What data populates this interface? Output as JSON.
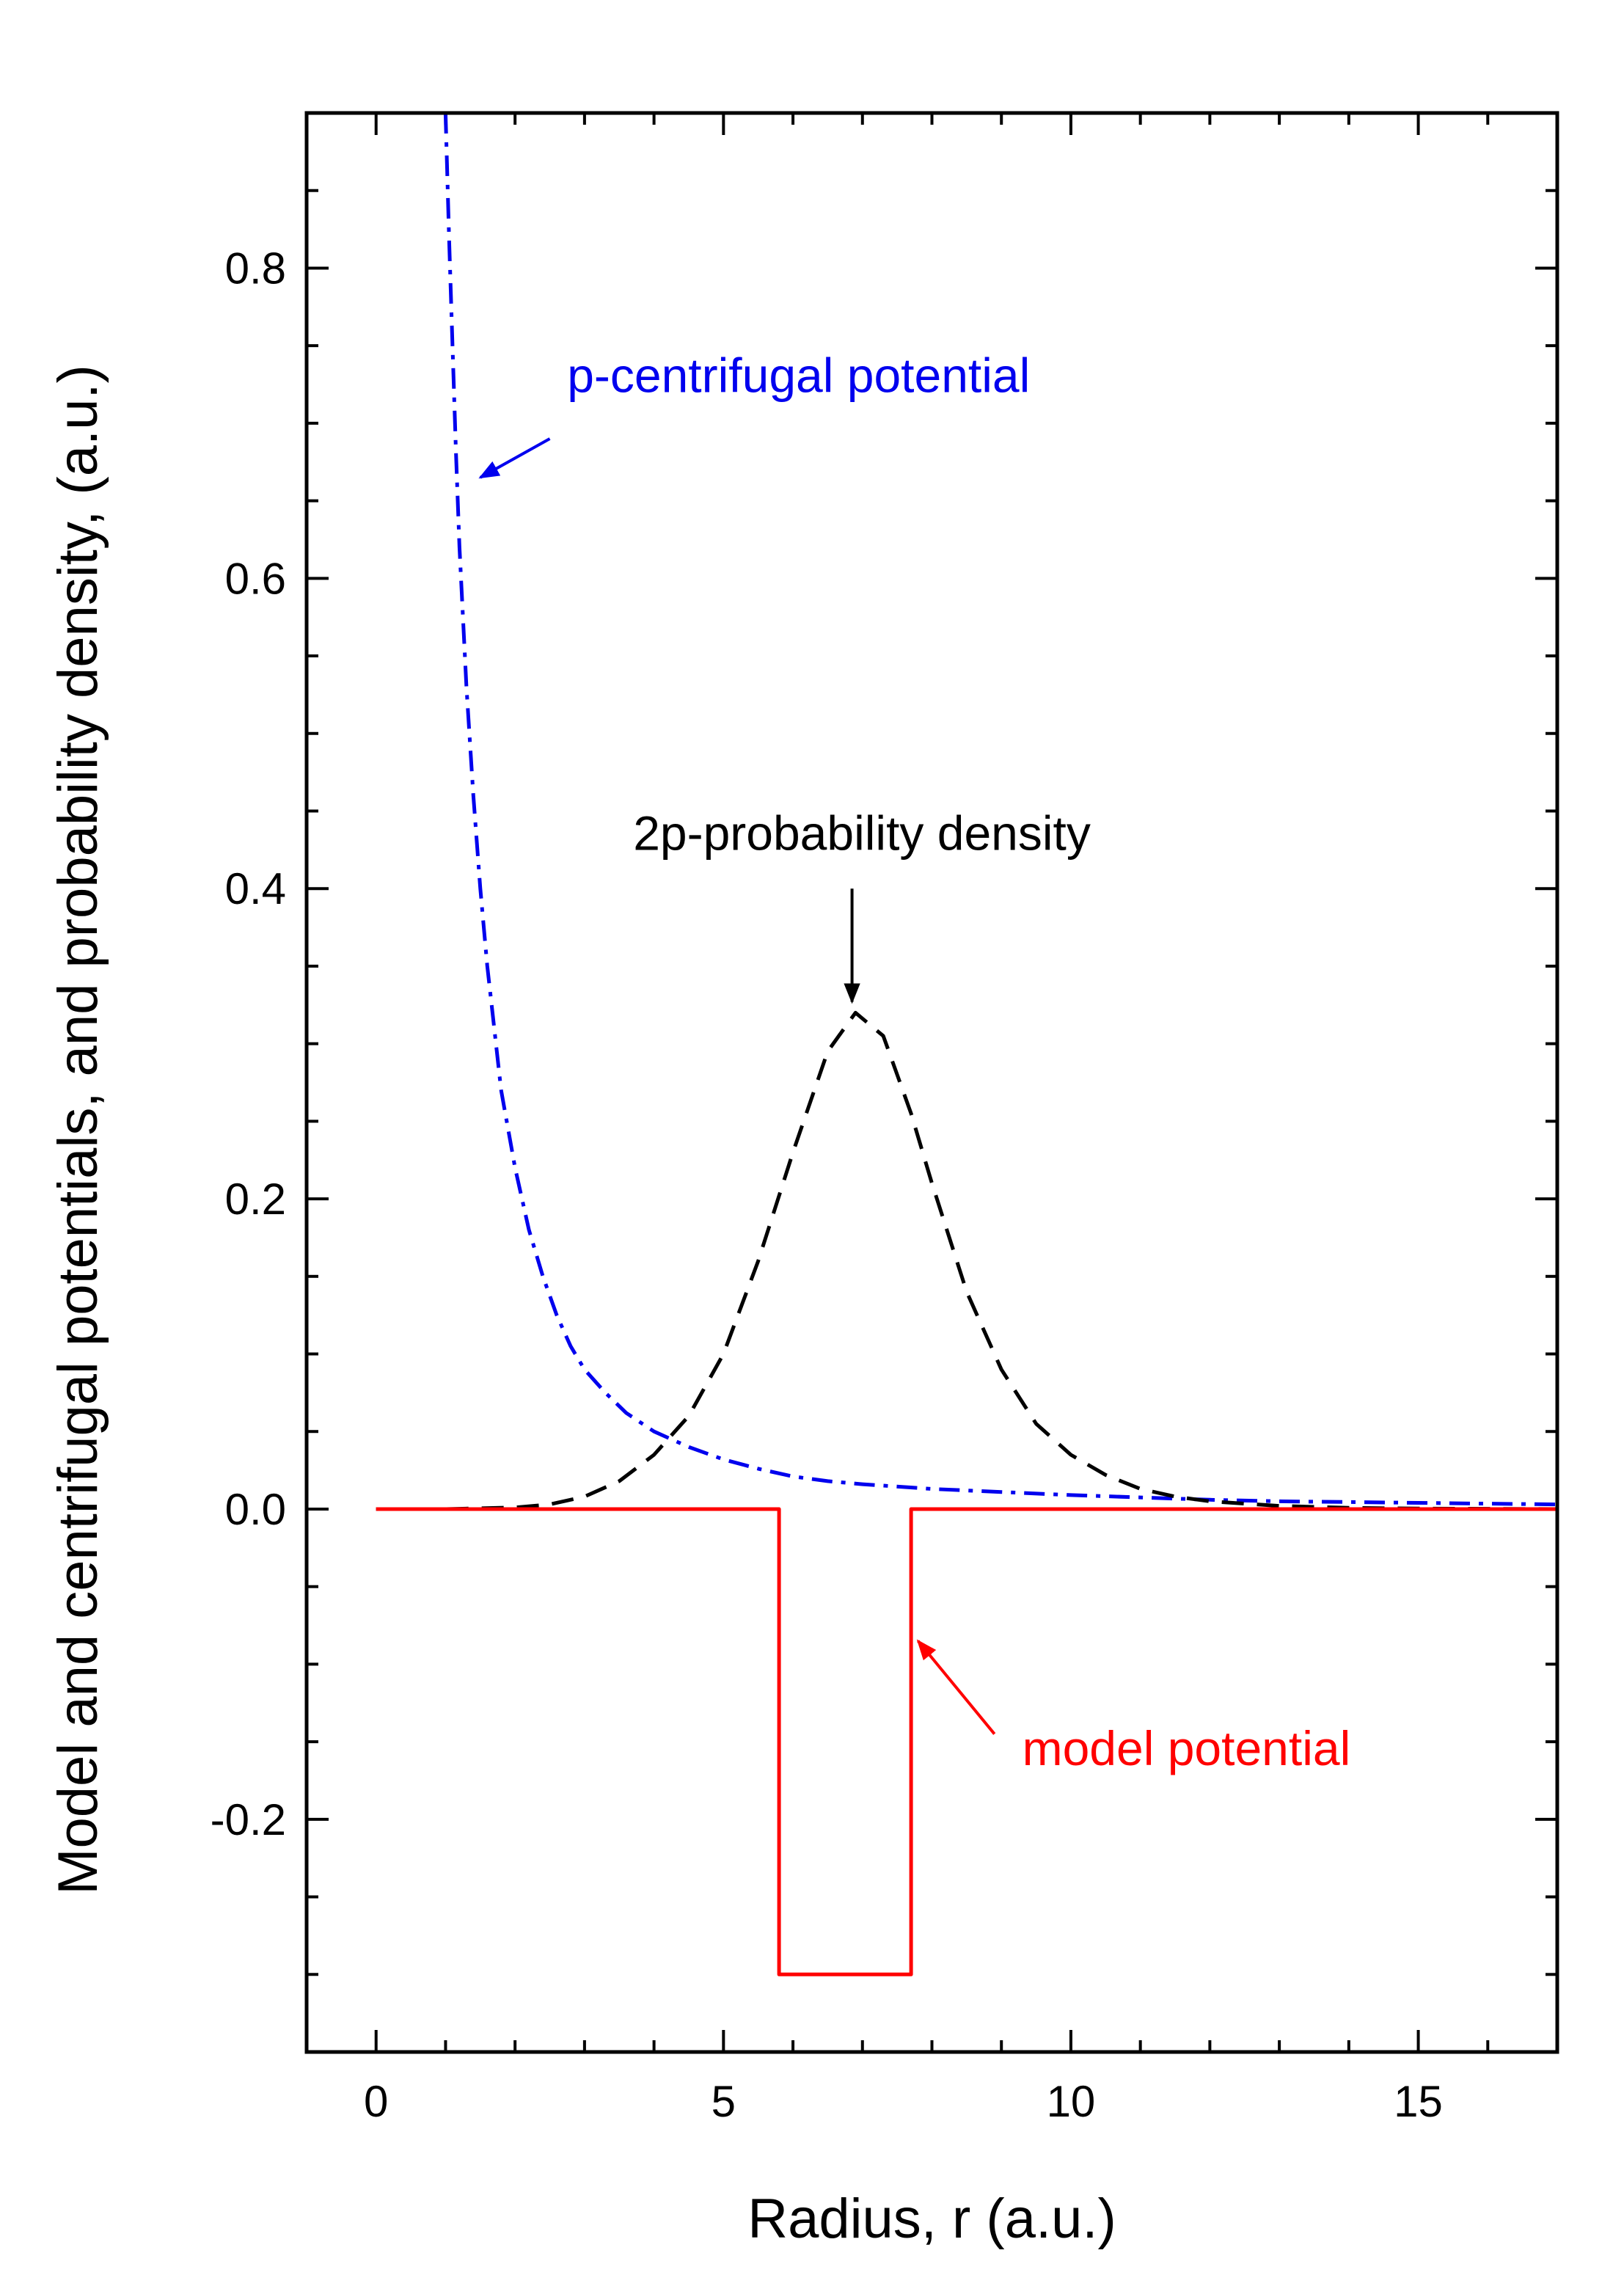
{
  "chart_data": {
    "type": "line",
    "xlabel": "Radius, r (a.u.)",
    "ylabel": "Model and centrifugal potentials, and probability density, (a.u.)",
    "xlim": [
      -1,
      17
    ],
    "ylim": [
      -0.35,
      0.9
    ],
    "x_ticks": [
      0,
      5,
      10,
      15
    ],
    "x_tick_labels": [
      "0",
      "5",
      "10",
      "15"
    ],
    "x_minor_step": 1,
    "y_ticks": [
      -0.2,
      0.0,
      0.2,
      0.4,
      0.6,
      0.8
    ],
    "y_tick_labels": [
      "-0.2",
      "0.0",
      "0.2",
      "0.4",
      "0.6",
      "0.8"
    ],
    "y_minor_step": 0.05,
    "grid": false,
    "series": [
      {
        "name": "p-centrifugal potential",
        "color": "#0000ee",
        "dash": "dash-dot",
        "points": [
          [
            1.0,
            0.9
          ],
          [
            1.05,
            0.82
          ],
          [
            1.1,
            0.75
          ],
          [
            1.15,
            0.68
          ],
          [
            1.2,
            0.62
          ],
          [
            1.3,
            0.53
          ],
          [
            1.4,
            0.46
          ],
          [
            1.5,
            0.4
          ],
          [
            1.6,
            0.35
          ],
          [
            1.7,
            0.31
          ],
          [
            1.8,
            0.27
          ],
          [
            2.0,
            0.22
          ],
          [
            2.2,
            0.18
          ],
          [
            2.4,
            0.15
          ],
          [
            2.6,
            0.125
          ],
          [
            2.8,
            0.105
          ],
          [
            3.0,
            0.09
          ],
          [
            3.3,
            0.075
          ],
          [
            3.6,
            0.062
          ],
          [
            4.0,
            0.05
          ],
          [
            4.5,
            0.04
          ],
          [
            5.0,
            0.032
          ],
          [
            5.5,
            0.026
          ],
          [
            6.0,
            0.021
          ],
          [
            6.5,
            0.018
          ],
          [
            7.0,
            0.016
          ],
          [
            8.0,
            0.013
          ],
          [
            9.0,
            0.011
          ],
          [
            10.0,
            0.009
          ],
          [
            11.0,
            0.0075
          ],
          [
            12.0,
            0.006
          ],
          [
            13.0,
            0.005
          ],
          [
            14.0,
            0.0045
          ],
          [
            15.0,
            0.004
          ],
          [
            16.0,
            0.0035
          ],
          [
            17.0,
            0.003
          ]
        ]
      },
      {
        "name": "2p-probability density",
        "color": "#000000",
        "dash": "dashed",
        "points": [
          [
            0.0,
            0.0
          ],
          [
            1.0,
            0.0
          ],
          [
            2.0,
            0.001
          ],
          [
            2.5,
            0.003
          ],
          [
            3.0,
            0.008
          ],
          [
            3.5,
            0.018
          ],
          [
            4.0,
            0.035
          ],
          [
            4.5,
            0.06
          ],
          [
            5.0,
            0.1
          ],
          [
            5.5,
            0.16
          ],
          [
            6.0,
            0.23
          ],
          [
            6.5,
            0.295
          ],
          [
            6.9,
            0.32
          ],
          [
            7.3,
            0.305
          ],
          [
            7.7,
            0.255
          ],
          [
            8.0,
            0.21
          ],
          [
            8.5,
            0.14
          ],
          [
            9.0,
            0.09
          ],
          [
            9.5,
            0.055
          ],
          [
            10.0,
            0.035
          ],
          [
            10.5,
            0.022
          ],
          [
            11.0,
            0.013
          ],
          [
            11.5,
            0.008
          ],
          [
            12.0,
            0.005
          ],
          [
            13.0,
            0.002
          ],
          [
            14.0,
            0.0008
          ],
          [
            15.0,
            0.0003
          ],
          [
            17.0,
            0.0
          ]
        ]
      },
      {
        "name": "model potential",
        "color": "#ff0000",
        "dash": "solid",
        "points": [
          [
            0.0,
            0.0
          ],
          [
            5.8,
            0.0
          ],
          [
            5.8,
            -0.3
          ],
          [
            7.7,
            -0.3
          ],
          [
            7.7,
            0.0
          ],
          [
            17.0,
            0.0
          ]
        ]
      }
    ],
    "annotations": [
      {
        "text": "p-centrifugal potential",
        "color": "#0000ee",
        "text_at": [
          2.75,
          0.72
        ],
        "arrow_from": [
          2.5,
          0.69
        ],
        "arrow_to": [
          1.5,
          0.665
        ]
      },
      {
        "text": "2p-probability density",
        "color": "#000000",
        "text_at": [
          3.7,
          0.425
        ],
        "arrow_from": [
          6.85,
          0.4
        ],
        "arrow_to": [
          6.85,
          0.327
        ]
      },
      {
        "text": "model potential",
        "color": "#ff0000",
        "text_at": [
          9.3,
          -0.165
        ],
        "arrow_from": [
          8.9,
          -0.145
        ],
        "arrow_to": [
          7.8,
          -0.085
        ]
      }
    ]
  }
}
